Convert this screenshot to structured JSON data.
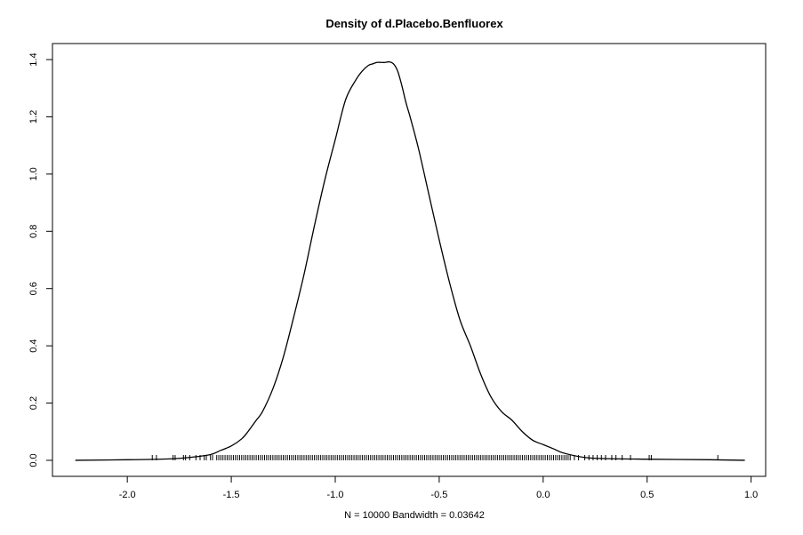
{
  "chart_data": {
    "type": "line",
    "title": "Density of d.Placebo.Benfluorex",
    "xlabel": "N = 10000   Bandwidth = 0.03642",
    "ylabel": "",
    "xlim": [
      -2.36,
      1.07
    ],
    "ylim": [
      -0.056,
      1.456
    ],
    "grid": false,
    "x_ticks": [
      -2.0,
      -1.5,
      -1.0,
      -0.5,
      0.0,
      0.5,
      1.0
    ],
    "x_tick_labels": [
      "-2.0",
      "-1.5",
      "-1.0",
      "-0.5",
      "0.0",
      "0.5",
      "1.0"
    ],
    "y_ticks": [
      0.0,
      0.2,
      0.4,
      0.6,
      0.8,
      1.0,
      1.2,
      1.4
    ],
    "y_tick_labels": [
      "0.0",
      "0.2",
      "0.4",
      "0.6",
      "0.8",
      "1.0",
      "1.2",
      "1.4"
    ],
    "series": [
      {
        "x": [
          -2.25,
          -2.0,
          -1.8,
          -1.7,
          -1.6,
          -1.55,
          -1.5,
          -1.45,
          -1.42,
          -1.38,
          -1.35,
          -1.3,
          -1.25,
          -1.2,
          -1.15,
          -1.1,
          -1.05,
          -1.0,
          -0.95,
          -0.9,
          -0.87,
          -0.84,
          -0.82,
          -0.8,
          -0.78,
          -0.76,
          -0.74,
          -0.72,
          -0.7,
          -0.68,
          -0.66,
          -0.64,
          -0.6,
          -0.55,
          -0.5,
          -0.45,
          -0.4,
          -0.35,
          -0.3,
          -0.25,
          -0.2,
          -0.15,
          -0.1,
          -0.05,
          0.0,
          0.05,
          0.1,
          0.2,
          0.3,
          0.5,
          0.8,
          0.97
        ],
        "y": [
          0.0,
          0.002,
          0.005,
          0.01,
          0.02,
          0.035,
          0.05,
          0.075,
          0.1,
          0.14,
          0.17,
          0.25,
          0.36,
          0.5,
          0.65,
          0.82,
          0.98,
          1.12,
          1.26,
          1.33,
          1.36,
          1.38,
          1.385,
          1.39,
          1.39,
          1.39,
          1.392,
          1.385,
          1.36,
          1.31,
          1.25,
          1.2,
          1.09,
          0.93,
          0.77,
          0.62,
          0.49,
          0.4,
          0.3,
          0.22,
          0.17,
          0.14,
          0.1,
          0.07,
          0.055,
          0.04,
          0.025,
          0.01,
          0.006,
          0.004,
          0.002,
          0.0
        ]
      }
    ],
    "rug": [
      -1.88,
      -1.86,
      -1.78,
      -1.77,
      -1.73,
      -1.72,
      -1.7,
      -1.67,
      -1.65,
      -1.63,
      -1.62,
      -1.6,
      -1.59,
      -1.57,
      -1.56,
      -1.55,
      -1.54,
      -1.53,
      -1.52,
      -1.51,
      -1.5,
      -1.49,
      -1.48,
      -1.47,
      -1.46,
      -1.45,
      -1.44,
      -1.43,
      -1.42,
      -1.41,
      -1.4,
      -1.39,
      -1.38,
      -1.37,
      -1.36,
      -1.35,
      -1.34,
      -1.33,
      -1.32,
      -1.31,
      -1.3,
      -1.29,
      -1.28,
      -1.27,
      -1.26,
      -1.25,
      -1.24,
      -1.23,
      -1.22,
      -1.21,
      -1.2,
      -1.19,
      -1.18,
      -1.17,
      -1.16,
      -1.15,
      -1.14,
      -1.13,
      -1.12,
      -1.11,
      -1.1,
      -1.09,
      -1.08,
      -1.07,
      -1.06,
      -1.05,
      -1.04,
      -1.03,
      -1.02,
      -1.01,
      -1.0,
      -0.99,
      -0.98,
      -0.97,
      -0.96,
      -0.95,
      -0.94,
      -0.93,
      -0.92,
      -0.91,
      -0.9,
      -0.89,
      -0.88,
      -0.87,
      -0.86,
      -0.85,
      -0.84,
      -0.83,
      -0.82,
      -0.81,
      -0.8,
      -0.79,
      -0.78,
      -0.77,
      -0.76,
      -0.75,
      -0.74,
      -0.73,
      -0.72,
      -0.71,
      -0.7,
      -0.69,
      -0.68,
      -0.67,
      -0.66,
      -0.65,
      -0.64,
      -0.63,
      -0.62,
      -0.61,
      -0.6,
      -0.59,
      -0.58,
      -0.57,
      -0.56,
      -0.55,
      -0.54,
      -0.53,
      -0.52,
      -0.51,
      -0.5,
      -0.49,
      -0.48,
      -0.47,
      -0.46,
      -0.45,
      -0.44,
      -0.43,
      -0.42,
      -0.41,
      -0.4,
      -0.39,
      -0.38,
      -0.37,
      -0.36,
      -0.35,
      -0.34,
      -0.33,
      -0.32,
      -0.31,
      -0.3,
      -0.29,
      -0.28,
      -0.27,
      -0.26,
      -0.25,
      -0.24,
      -0.23,
      -0.22,
      -0.21,
      -0.2,
      -0.19,
      -0.18,
      -0.17,
      -0.16,
      -0.15,
      -0.14,
      -0.13,
      -0.12,
      -0.11,
      -0.1,
      -0.09,
      -0.08,
      -0.07,
      -0.06,
      -0.05,
      -0.04,
      -0.03,
      -0.02,
      -0.01,
      0.0,
      0.01,
      0.02,
      0.03,
      0.04,
      0.05,
      0.06,
      0.07,
      0.08,
      0.09,
      0.1,
      0.11,
      0.12,
      0.13,
      0.15,
      0.17,
      0.2,
      0.22,
      0.24,
      0.26,
      0.28,
      0.3,
      0.33,
      0.35,
      0.38,
      0.42,
      0.51,
      0.52,
      0.84
    ]
  }
}
